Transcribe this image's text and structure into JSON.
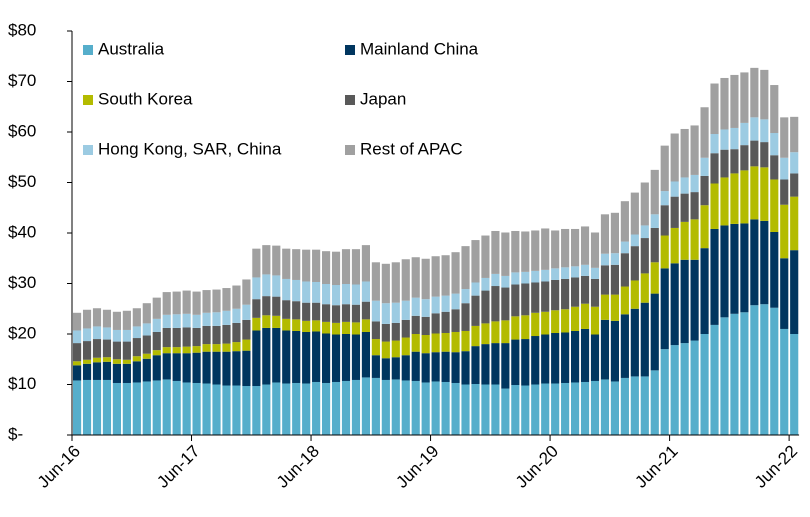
{
  "chart_data": {
    "type": "stacked_bar",
    "categories": [
      "Jun-16",
      null,
      null,
      null,
      null,
      null,
      null,
      null,
      null,
      null,
      null,
      null,
      "Jun-17",
      null,
      null,
      null,
      null,
      null,
      null,
      null,
      null,
      null,
      null,
      null,
      "Jun-18",
      null,
      null,
      null,
      null,
      null,
      null,
      null,
      null,
      null,
      null,
      null,
      "Jun-19",
      null,
      null,
      null,
      null,
      null,
      null,
      null,
      null,
      null,
      null,
      null,
      "Jun-20",
      null,
      null,
      null,
      null,
      null,
      null,
      null,
      null,
      null,
      null,
      null,
      "Jun-21",
      null,
      null,
      null,
      null,
      null,
      null,
      null,
      null,
      null,
      null,
      null,
      "Jun-22"
    ],
    "series": [
      {
        "name": "Australia",
        "color": "#56aecb",
        "values": [
          10.8,
          10.9,
          10.9,
          10.9,
          10.3,
          10.3,
          10.4,
          10.6,
          10.8,
          11.0,
          10.7,
          10.4,
          10.3,
          10.2,
          10.0,
          9.8,
          9.8,
          9.7,
          9.7,
          10.0,
          10.4,
          10.2,
          10.3,
          10.2,
          10.5,
          10.3,
          10.5,
          10.7,
          10.9,
          11.4,
          11.3,
          10.9,
          11.0,
          10.8,
          10.7,
          10.4,
          10.6,
          10.5,
          10.3,
          10.0,
          10.1,
          10.0,
          10.0,
          9.2,
          9.9,
          9.8,
          10.0,
          10.2,
          10.2,
          10.3,
          10.4,
          10.5,
          10.7,
          11.0,
          10.6,
          11.3,
          11.6,
          11.6,
          12.8,
          17.0,
          17.8,
          18.2,
          18.7,
          20.0,
          21.8,
          23.3,
          24.0,
          24.3,
          25.7,
          25.9,
          25.2,
          21.0,
          20.0
        ]
      },
      {
        "name": "Mainland China",
        "color": "#00365f",
        "values": [
          3.0,
          3.2,
          3.5,
          3.6,
          3.8,
          3.8,
          4.2,
          4.5,
          5.0,
          5.2,
          5.5,
          5.8,
          6.0,
          6.3,
          6.5,
          6.7,
          6.8,
          7.0,
          11.0,
          11.2,
          10.8,
          10.5,
          10.3,
          10.2,
          10.0,
          9.8,
          9.4,
          9.3,
          9.0,
          9.0,
          4.5,
          4.3,
          4.4,
          5.0,
          5.8,
          5.8,
          5.8,
          6.0,
          6.1,
          6.6,
          7.5,
          8.0,
          8.2,
          9.0,
          9.0,
          9.2,
          9.6,
          9.7,
          10.0,
          10.0,
          10.2,
          10.5,
          9.2,
          11.8,
          12.0,
          12.6,
          13.4,
          14.6,
          15.2,
          16.0,
          16.2,
          16.5,
          16.0,
          17.0,
          19.0,
          18.2,
          17.8,
          17.6,
          17.0,
          16.5,
          15.0,
          14.0,
          16.6
        ]
      },
      {
        "name": "South Korea",
        "color": "#b3bb00",
        "values": [
          0.8,
          0.8,
          0.9,
          0.9,
          0.9,
          0.8,
          1.0,
          1.0,
          1.0,
          1.2,
          1.2,
          1.3,
          1.3,
          1.5,
          1.5,
          1.6,
          1.8,
          2.2,
          2.5,
          2.5,
          2.4,
          2.3,
          2.3,
          2.2,
          2.2,
          2.3,
          2.3,
          2.4,
          2.4,
          2.5,
          3.2,
          3.3,
          3.3,
          3.5,
          3.5,
          3.6,
          3.7,
          3.7,
          4.0,
          4.0,
          4.0,
          4.1,
          4.3,
          4.5,
          4.6,
          4.7,
          4.6,
          4.5,
          4.5,
          4.6,
          4.8,
          5.0,
          5.5,
          5.0,
          5.2,
          5.5,
          5.6,
          5.8,
          6.2,
          6.5,
          7.0,
          7.5,
          8.0,
          8.5,
          9.0,
          9.5,
          10.0,
          10.5,
          10.5,
          10.6,
          10.4,
          10.6,
          10.6
        ]
      },
      {
        "name": "Japan",
        "color": "#595959",
        "values": [
          3.6,
          3.7,
          3.7,
          3.5,
          3.5,
          3.6,
          3.6,
          3.6,
          3.6,
          3.8,
          3.8,
          3.8,
          3.6,
          3.6,
          3.6,
          3.7,
          3.8,
          3.9,
          3.7,
          3.8,
          3.8,
          3.7,
          3.6,
          3.6,
          3.5,
          3.5,
          3.5,
          3.5,
          3.5,
          3.5,
          3.5,
          3.5,
          3.5,
          3.5,
          3.6,
          3.6,
          4.0,
          4.2,
          4.5,
          5.5,
          6.0,
          6.5,
          7.0,
          6.5,
          6.3,
          6.3,
          6.0,
          6.0,
          6.0,
          6.0,
          5.8,
          5.5,
          5.5,
          5.8,
          5.9,
          6.6,
          6.8,
          7.0,
          6.8,
          6.0,
          6.2,
          5.6,
          5.4,
          5.8,
          6.0,
          5.5,
          4.8,
          5.0,
          5.1,
          5.0,
          4.8,
          5.0,
          4.6
        ]
      },
      {
        "name": "Hong Kong, SAR, China",
        "color": "#9ccbe2",
        "values": [
          2.5,
          2.5,
          2.5,
          2.4,
          2.3,
          2.3,
          2.3,
          2.4,
          2.6,
          2.6,
          2.7,
          2.7,
          2.6,
          2.6,
          2.7,
          2.8,
          2.8,
          3.0,
          4.3,
          4.3,
          4.2,
          4.2,
          4.2,
          4.2,
          4.1,
          4.0,
          4.0,
          4.0,
          4.0,
          4.0,
          4.1,
          4.1,
          4.0,
          3.8,
          3.6,
          3.5,
          3.3,
          3.2,
          3.1,
          2.8,
          2.6,
          2.5,
          2.4,
          2.3,
          2.4,
          2.3,
          2.3,
          2.3,
          2.3,
          2.3,
          2.2,
          2.2,
          2.2,
          2.3,
          2.3,
          2.3,
          2.3,
          2.5,
          2.7,
          2.8,
          3.0,
          3.2,
          3.4,
          3.6,
          3.8,
          4.0,
          4.2,
          4.4,
          4.6,
          4.5,
          4.4,
          4.3,
          4.2
        ]
      },
      {
        "name": "Rest of APAC",
        "color": "#a0a0a0",
        "values": [
          3.5,
          3.7,
          3.6,
          3.5,
          3.6,
          3.8,
          3.6,
          4.0,
          4.2,
          4.5,
          4.5,
          4.6,
          4.6,
          4.5,
          4.5,
          4.5,
          4.6,
          5.0,
          5.7,
          5.8,
          5.9,
          6.0,
          6.1,
          6.3,
          6.4,
          6.5,
          6.6,
          6.9,
          7.0,
          7.2,
          7.6,
          7.8,
          8.0,
          8.2,
          8.0,
          8.0,
          8.0,
          8.0,
          8.2,
          8.5,
          8.4,
          8.4,
          8.5,
          8.6,
          8.2,
          8.0,
          8.0,
          8.2,
          7.5,
          7.6,
          7.4,
          7.6,
          7.0,
          7.8,
          8.0,
          8.0,
          8.3,
          8.5,
          8.8,
          9.0,
          9.5,
          9.6,
          9.8,
          10.0,
          10.0,
          10.2,
          10.5,
          10.0,
          9.8,
          9.8,
          9.5,
          8.0,
          7.0
        ]
      }
    ],
    "ylim": [
      0,
      80
    ],
    "yticks": [
      {
        "value": 0,
        "label": "$-"
      },
      {
        "value": 10,
        "label": "$10"
      },
      {
        "value": 20,
        "label": "$20"
      },
      {
        "value": 30,
        "label": "$30"
      },
      {
        "value": 40,
        "label": "$40"
      },
      {
        "value": 50,
        "label": "$50"
      },
      {
        "value": 60,
        "label": "$60"
      },
      {
        "value": 70,
        "label": "$70"
      },
      {
        "value": 80,
        "label": "$80"
      }
    ],
    "legend": "top-left",
    "grid": false
  }
}
